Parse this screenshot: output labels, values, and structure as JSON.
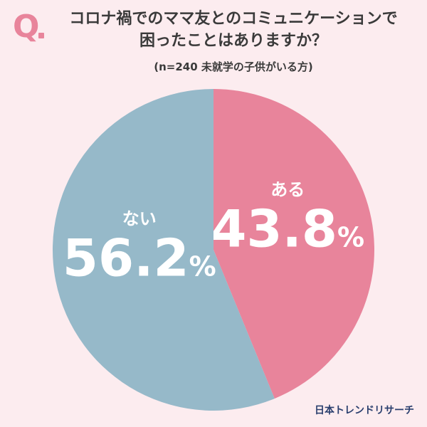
{
  "header": {
    "q_label": "Q",
    "title_line1": "コロナ禍でのママ友とのコミュニケーションで",
    "title_line2": "困ったことはありますか？",
    "subtitle": "(n=240 未就学の子供がいる方)"
  },
  "source": "日本トレンドリサーチ",
  "colors": {
    "background": "#fcecef",
    "accent": "#e8849b",
    "text": "#3a3a3a",
    "source": "#2a3f6e"
  },
  "chart_data": {
    "type": "pie",
    "title": "コロナ禍でのママ友とのコミュニケーションで困ったことはありますか？",
    "categories": [
      "ある",
      "ない"
    ],
    "values": [
      43.8,
      56.2
    ],
    "unit": "%",
    "colors": [
      "#e8849b",
      "#96b9c9"
    ],
    "start_angle_deg": 0,
    "direction": "clockwise",
    "labels": [
      {
        "category": "ある",
        "value_text": "43.8",
        "unit": "%"
      },
      {
        "category": "ない",
        "value_text": "56.2",
        "unit": "%"
      }
    ]
  }
}
